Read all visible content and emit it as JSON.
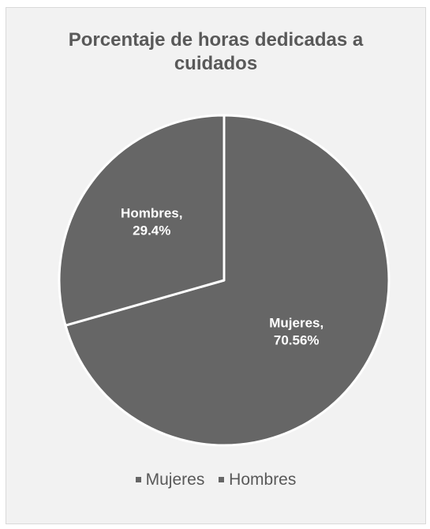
{
  "chart_data": {
    "type": "pie",
    "title": "Porcentaje de horas dedicadas a cuidados",
    "slices": [
      {
        "name": "Mujeres",
        "value": 70.56,
        "label_name": "Mujeres,",
        "label_value": "70.56%",
        "color": "#666666"
      },
      {
        "name": "Hombres",
        "value": 29.4,
        "label_name": "Hombres,",
        "label_value": "29.4%",
        "color": "#666666"
      }
    ],
    "slice_border_color": "#ffffff",
    "legend_placement": "bottom",
    "legend": [
      {
        "label": "Mujeres",
        "color": "#666666"
      },
      {
        "label": "Hombres",
        "color": "#666666"
      }
    ]
  },
  "colors": {
    "background": "#f2f2f2",
    "title": "#595959",
    "data_label": "#ffffff"
  }
}
